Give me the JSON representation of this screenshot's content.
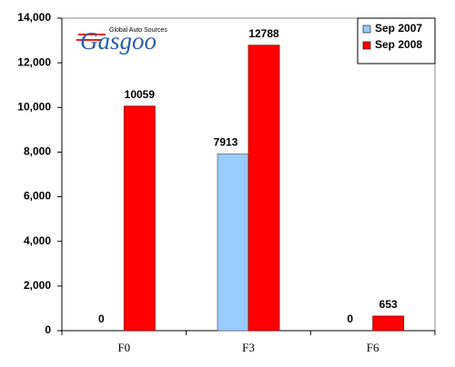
{
  "chart_data": {
    "type": "bar",
    "categories": [
      "F0",
      "F3",
      "F6"
    ],
    "series": [
      {
        "name": "Sep 2007",
        "color": "#99ccff",
        "values": [
          0,
          7913,
          0
        ]
      },
      {
        "name": "Sep 2008",
        "color": "#ff0000",
        "values": [
          10059,
          12788,
          653
        ]
      }
    ],
    "ylim": [
      0,
      14000
    ],
    "yticks": [
      0,
      {
        "value": 2000,
        "label": "2,000"
      },
      {
        "value": 4000,
        "label": "4,000"
      },
      {
        "value": 6000,
        "label": "6,000"
      },
      {
        "value": 8000,
        "label": "8,000"
      },
      {
        "value": 10000,
        "label": "10,000"
      },
      {
        "value": 12000,
        "label": "12,000"
      },
      {
        "value": 14000,
        "label": "14,000"
      }
    ],
    "grid": false,
    "legend": "upper right",
    "data_labels": true
  },
  "logo": {
    "tagline": "Global Auto Sources",
    "name": "Gasgoo"
  }
}
